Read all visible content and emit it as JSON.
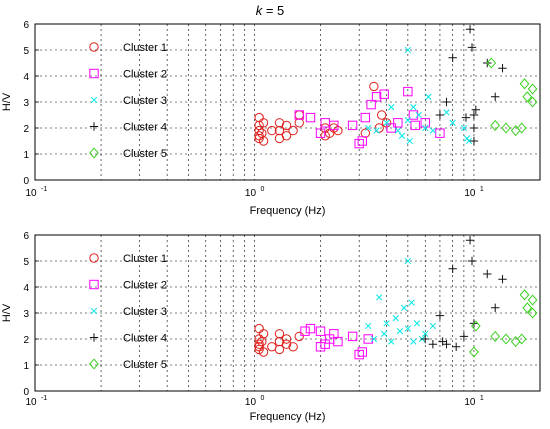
{
  "figure_title": {
    "italic": "k",
    "rest": " = 5"
  },
  "chart_data": [
    {
      "type": "scatter",
      "xscale": "log",
      "xlim": [
        0.1,
        20
      ],
      "ylim": [
        0,
        6
      ],
      "xlabel": "Frequency (Hz)",
      "ylabel": "H/V",
      "yticks": [
        "0",
        "1",
        "2",
        "3",
        "4",
        "5",
        "6"
      ],
      "xticks": [
        {
          "base": "10",
          "exp": "-1"
        },
        {
          "base": "10",
          "exp": "0"
        },
        {
          "base": "10",
          "exp": "1"
        }
      ],
      "grid": "dotted, major and minor decades",
      "legend_position": "top-left",
      "series": [
        {
          "name": "Cluster 1",
          "marker": "circle",
          "color": "#e0201c",
          "points": [
            [
              1.05,
              1.6
            ],
            [
              1.05,
              1.7
            ],
            [
              1.05,
              1.9
            ],
            [
              1.05,
              2.1
            ],
            [
              1.05,
              2.4
            ],
            [
              1.08,
              1.8
            ],
            [
              1.1,
              1.5
            ],
            [
              1.1,
              2.2
            ],
            [
              1.2,
              1.9
            ],
            [
              1.3,
              1.6
            ],
            [
              1.3,
              1.9
            ],
            [
              1.3,
              2.2
            ],
            [
              1.4,
              1.7
            ],
            [
              1.4,
              2.1
            ],
            [
              1.5,
              1.9
            ],
            [
              1.6,
              2.2
            ],
            [
              1.6,
              2.5
            ],
            [
              2.1,
              1.7
            ],
            [
              2.1,
              2.0
            ],
            [
              2.2,
              1.8
            ],
            [
              2.3,
              2.0
            ],
            [
              2.4,
              1.9
            ],
            [
              3.2,
              1.8
            ],
            [
              3.5,
              3.6
            ],
            [
              3.7,
              2.0
            ],
            [
              3.8,
              2.5
            ],
            [
              4.0,
              2.2
            ]
          ]
        },
        {
          "name": "Cluster 2",
          "marker": "square",
          "color": "#ff00ff",
          "points": [
            [
              1.6,
              2.5
            ],
            [
              1.8,
              2.4
            ],
            [
              2.0,
              1.8
            ],
            [
              2.1,
              2.2
            ],
            [
              2.3,
              2.1
            ],
            [
              2.8,
              2.1
            ],
            [
              3.0,
              1.4
            ],
            [
              3.1,
              1.5
            ],
            [
              3.2,
              2.4
            ],
            [
              3.4,
              2.9
            ],
            [
              3.6,
              3.2
            ],
            [
              3.9,
              3.3
            ],
            [
              4.2,
              2.0
            ],
            [
              4.5,
              2.2
            ],
            [
              5.0,
              3.4
            ],
            [
              5.3,
              2.5
            ],
            [
              5.4,
              2.1
            ],
            [
              6.0,
              2.2
            ],
            [
              7.0,
              1.8
            ]
          ]
        },
        {
          "name": "Cluster 3",
          "marker": "x",
          "color": "#00e8e8",
          "points": [
            [
              3.3,
              2.0
            ],
            [
              3.6,
              1.9
            ],
            [
              4.0,
              2.2
            ],
            [
              4.2,
              2.8
            ],
            [
              4.5,
              1.9
            ],
            [
              4.7,
              1.7
            ],
            [
              5.0,
              5.0
            ],
            [
              5.0,
              2.3
            ],
            [
              5.1,
              1.5
            ],
            [
              5.3,
              2.8
            ],
            [
              5.6,
              2.5
            ],
            [
              6.0,
              2.0
            ],
            [
              6.2,
              3.2
            ],
            [
              6.5,
              1.9
            ],
            [
              7.5,
              2.6
            ],
            [
              8.0,
              2.2
            ],
            [
              9.0,
              2.0
            ],
            [
              9.3,
              1.6
            ],
            [
              9.5,
              1.5
            ]
          ]
        },
        {
          "name": "Cluster 4",
          "marker": "plus",
          "color": "#111111",
          "points": [
            [
              7.0,
              2.5
            ],
            [
              7.5,
              3.0
            ],
            [
              8.0,
              4.7
            ],
            [
              9.2,
              2.4
            ],
            [
              9.6,
              5.8
            ],
            [
              9.8,
              5.1
            ],
            [
              10.0,
              1.5
            ],
            [
              10.0,
              2.0
            ],
            [
              10.0,
              2.5
            ],
            [
              10.2,
              2.7
            ],
            [
              11.5,
              4.5
            ],
            [
              12.5,
              3.2
            ],
            [
              13.5,
              4.3
            ]
          ]
        },
        {
          "name": "Cluster 5",
          "marker": "diamond",
          "color": "#3ad21e",
          "points": [
            [
              12.0,
              4.5
            ],
            [
              12.5,
              2.1
            ],
            [
              14.0,
              2.0
            ],
            [
              15.5,
              1.9
            ],
            [
              16.5,
              2.0
            ],
            [
              17.0,
              3.7
            ],
            [
              17.5,
              3.2
            ],
            [
              18.5,
              3.0
            ],
            [
              18.5,
              3.5
            ]
          ]
        }
      ]
    },
    {
      "type": "scatter",
      "xscale": "log",
      "xlim": [
        0.1,
        20
      ],
      "ylim": [
        0,
        6
      ],
      "xlabel": "Frequency (Hz)",
      "ylabel": "H/V",
      "yticks": [
        "0",
        "1",
        "2",
        "3",
        "4",
        "5",
        "6"
      ],
      "xticks": [
        {
          "base": "10",
          "exp": "-1"
        },
        {
          "base": "10",
          "exp": "0"
        },
        {
          "base": "10",
          "exp": "1"
        }
      ],
      "grid": "dotted, major and minor decades",
      "legend_position": "top-left",
      "series": [
        {
          "name": "Cluster 1",
          "marker": "circle",
          "color": "#e0201c",
          "points": [
            [
              1.05,
              1.6
            ],
            [
              1.05,
              1.7
            ],
            [
              1.05,
              1.8
            ],
            [
              1.05,
              2.0
            ],
            [
              1.05,
              2.4
            ],
            [
              1.08,
              1.9
            ],
            [
              1.1,
              1.5
            ],
            [
              1.1,
              2.2
            ],
            [
              1.2,
              1.7
            ],
            [
              1.3,
              1.6
            ],
            [
              1.3,
              1.9
            ],
            [
              1.3,
              2.2
            ],
            [
              1.4,
              1.8
            ],
            [
              1.4,
              2.0
            ],
            [
              1.5,
              1.7
            ],
            [
              1.6,
              2.1
            ]
          ]
        },
        {
          "name": "Cluster 2",
          "marker": "square",
          "color": "#ff00ff",
          "points": [
            [
              1.7,
              2.3
            ],
            [
              1.8,
              2.4
            ],
            [
              2.0,
              1.7
            ],
            [
              2.0,
              2.3
            ],
            [
              2.1,
              1.8
            ],
            [
              2.2,
              2.0
            ],
            [
              2.3,
              2.2
            ],
            [
              2.4,
              1.9
            ],
            [
              2.8,
              2.1
            ],
            [
              3.0,
              1.4
            ],
            [
              3.1,
              1.5
            ],
            [
              3.3,
              2.0
            ]
          ]
        },
        {
          "name": "Cluster 3",
          "marker": "x",
          "color": "#00e8e8",
          "points": [
            [
              3.3,
              2.5
            ],
            [
              3.5,
              2.0
            ],
            [
              3.7,
              3.6
            ],
            [
              3.9,
              2.2
            ],
            [
              4.0,
              2.6
            ],
            [
              4.2,
              1.9
            ],
            [
              4.4,
              2.8
            ],
            [
              4.6,
              2.3
            ],
            [
              4.8,
              3.2
            ],
            [
              5.0,
              5.0
            ],
            [
              5.0,
              2.4
            ],
            [
              5.2,
              3.4
            ],
            [
              5.3,
              1.9
            ],
            [
              5.5,
              2.6
            ],
            [
              5.8,
              2.0
            ],
            [
              6.0,
              2.2
            ],
            [
              6.5,
              2.5
            ]
          ]
        },
        {
          "name": "Cluster 4",
          "marker": "plus",
          "color": "#111111",
          "points": [
            [
              6.0,
              2.0
            ],
            [
              6.5,
              1.8
            ],
            [
              7.0,
              2.9
            ],
            [
              7.2,
              1.9
            ],
            [
              7.5,
              1.8
            ],
            [
              8.0,
              4.7
            ],
            [
              8.3,
              1.7
            ],
            [
              9.0,
              2.1
            ],
            [
              9.6,
              5.8
            ],
            [
              9.8,
              5.0
            ],
            [
              10.0,
              2.6
            ],
            [
              11.5,
              4.5
            ],
            [
              12.5,
              3.2
            ],
            [
              13.5,
              4.3
            ]
          ]
        },
        {
          "name": "Cluster 5",
          "marker": "diamond",
          "color": "#3ad21e",
          "points": [
            [
              10.0,
              1.5
            ],
            [
              10.2,
              2.5
            ],
            [
              12.5,
              2.1
            ],
            [
              14.0,
              2.0
            ],
            [
              15.5,
              1.9
            ],
            [
              16.5,
              2.0
            ],
            [
              17.0,
              3.7
            ],
            [
              17.5,
              3.2
            ],
            [
              18.5,
              3.0
            ],
            [
              18.5,
              3.5
            ]
          ]
        }
      ]
    }
  ]
}
